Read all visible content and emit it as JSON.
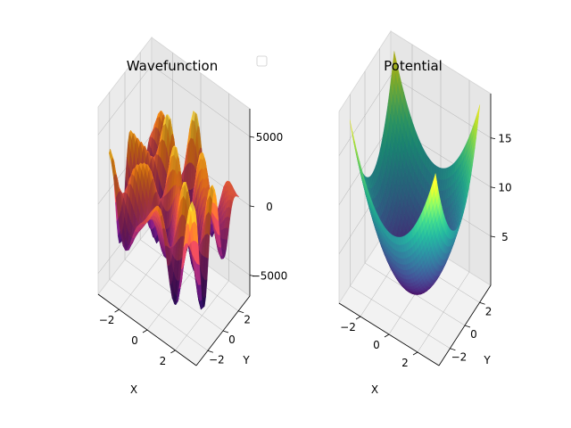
{
  "chart_data": [
    {
      "type": "surface",
      "title": "Wavefunction",
      "xlabel": "X",
      "ylabel": "Y",
      "zlabel": "",
      "xlim": [
        -3.5,
        3.5
      ],
      "ylim": [
        -3.5,
        3.5
      ],
      "zlim": [
        -6500,
        7000
      ],
      "x_ticks": [
        -2,
        0,
        2
      ],
      "y_ticks": [
        -2,
        0,
        2
      ],
      "z_ticks": [
        -5000,
        0,
        5000
      ],
      "x_tick_labels": [
        "−2",
        "0",
        "2"
      ],
      "y_tick_labels": [
        "−2",
        "0",
        "2"
      ],
      "z_tick_labels": [
        "−5000",
        "0",
        "5000"
      ],
      "colormap": "inferno",
      "legend": {
        "location": "upper right",
        "entries": []
      },
      "grid": true
    },
    {
      "type": "surface",
      "title": "Potential",
      "xlabel": "X",
      "ylabel": "Y",
      "zlabel": "",
      "xlim": [
        -3.5,
        3.5
      ],
      "ylim": [
        -3.5,
        3.5
      ],
      "zlim": [
        0,
        19.5
      ],
      "x_ticks": [
        -2,
        0,
        2
      ],
      "y_ticks": [
        -2,
        0,
        2
      ],
      "z_ticks": [
        5,
        10,
        15
      ],
      "x_tick_labels": [
        "−2",
        "0",
        "2"
      ],
      "y_tick_labels": [
        "−2",
        "0",
        "2"
      ],
      "z_tick_labels": [
        "5",
        "10",
        "15"
      ],
      "colormap": "viridis",
      "grid": true
    }
  ]
}
